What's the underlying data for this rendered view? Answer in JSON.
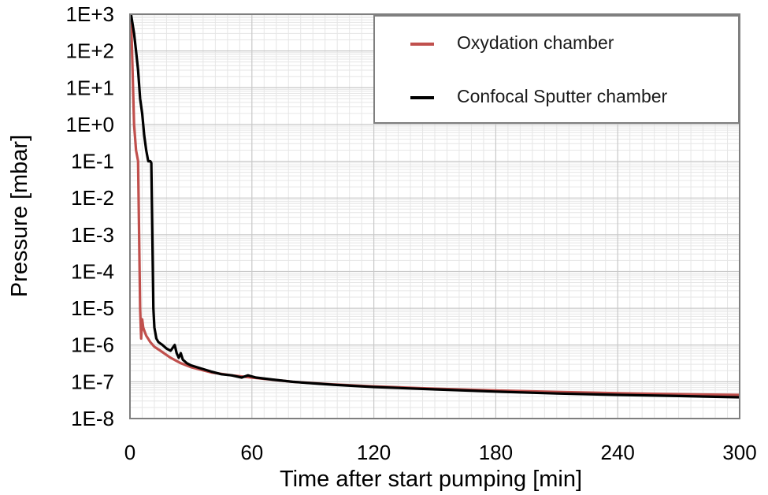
{
  "chart_data": {
    "type": "line",
    "xlabel": "Time after start pumping [min]",
    "ylabel": "Pressure [mbar]",
    "xlim": [
      0,
      300
    ],
    "ylim_exp": [
      -8,
      3
    ],
    "yscale": "log",
    "grid": true,
    "legend_position": "top-right",
    "x_ticks": [
      0,
      60,
      120,
      180,
      240,
      300
    ],
    "x_tick_labels": [
      "0",
      "60",
      "120",
      "180",
      "240",
      "300"
    ],
    "y_tick_exps": [
      3,
      2,
      1,
      0,
      -1,
      -2,
      -3,
      -4,
      -5,
      -6,
      -7,
      -8
    ],
    "y_tick_labels": [
      "1E+3",
      "1E+2",
      "1E+1",
      "1E+0",
      "1E-1",
      "1E-2",
      "1E-3",
      "1E-4",
      "1E-5",
      "1E-6",
      "1E-7",
      "1E-8"
    ],
    "series": [
      {
        "name": "Oxydation chamber",
        "color": "#c0504d",
        "x": [
          0.5,
          1,
          1.5,
          2,
          3,
          4,
          4.5,
          5,
          5.5,
          6,
          6.5,
          7,
          8,
          10,
          12,
          15,
          20,
          25,
          30,
          40,
          50,
          60,
          80,
          100,
          120,
          150,
          180,
          210,
          240,
          270,
          300
        ],
        "y": [
          1000,
          100,
          10,
          1,
          0.2,
          0.1,
          0.001,
          1e-05,
          1.5e-06,
          5e-06,
          3e-06,
          2.5e-06,
          1.8e-06,
          1.2e-06,
          9e-07,
          7e-07,
          4.5e-07,
          3.2e-07,
          2.5e-07,
          1.8e-07,
          1.5e-07,
          1.3e-07,
          1e-07,
          8.5e-08,
          7.5e-08,
          6.5e-08,
          5.8e-08,
          5.3e-08,
          4.9e-08,
          4.6e-08,
          4.4e-08
        ]
      },
      {
        "name": "Confocal Sputter chamber",
        "color": "#000000",
        "x": [
          0.5,
          2,
          3,
          4,
          5,
          6,
          7,
          8,
          9,
          10,
          10.5,
          11,
          11.5,
          12,
          13,
          14,
          16,
          18,
          20,
          22,
          23,
          24,
          25,
          26,
          28,
          30,
          35,
          40,
          45,
          50,
          55,
          58,
          62,
          70,
          80,
          100,
          120,
          150,
          180,
          210,
          240,
          270,
          300
        ],
        "y": [
          1000,
          300,
          100,
          30,
          5,
          2,
          0.5,
          0.2,
          0.1,
          0.1,
          0.09,
          0.001,
          1e-05,
          3e-06,
          1.5e-06,
          1.2e-06,
          1e-06,
          8e-07,
          7e-07,
          1e-06,
          6e-07,
          4.5e-07,
          6e-07,
          4e-07,
          3.2e-07,
          2.8e-07,
          2.3e-07,
          1.9e-07,
          1.6e-07,
          1.5e-07,
          1.3e-07,
          1.5e-07,
          1.3e-07,
          1.15e-07,
          1e-07,
          8.3e-08,
          7.2e-08,
          6.2e-08,
          5.4e-08,
          4.8e-08,
          4.4e-08,
          4.1e-08,
          3.8e-08
        ]
      }
    ]
  }
}
